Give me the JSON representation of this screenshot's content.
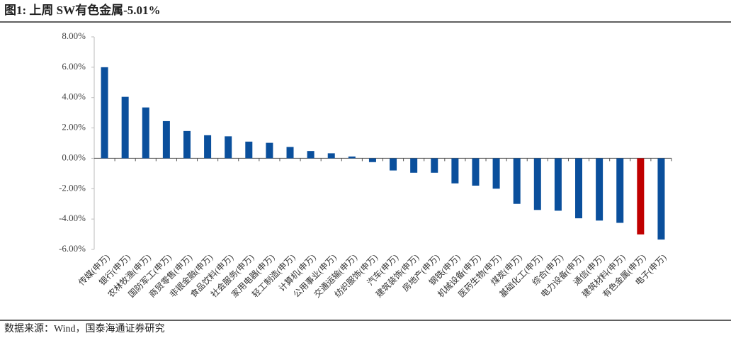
{
  "chart_data": {
    "type": "bar",
    "title": "图1:  上周 SW有色金属-5.01%",
    "source": "数据来源：Wind，国泰海通证券研究",
    "categories": [
      "传媒(申万)",
      "银行(申万)",
      "农林牧渔(申万)",
      "国防军工(申万)",
      "商贸零售(申万)",
      "非银金融(申万)",
      "食品饮料(申万)",
      "社会服务(申万)",
      "家用电器(申万)",
      "轻工制造(申万)",
      "计算机(申万)",
      "公用事业(申万)",
      "交通运输(申万)",
      "纺织服饰(申万)",
      "汽车(申万)",
      "建筑装饰(申万)",
      "房地产(申万)",
      "钢铁(申万)",
      "机械设备(申万)",
      "医药生物(申万)",
      "煤炭(申万)",
      "基础化工(申万)",
      "综合(申万)",
      "电力设备(申万)",
      "通信(申万)",
      "建筑材料(申万)",
      "有色金属(申万)",
      "电子(申万)"
    ],
    "values": [
      6.0,
      4.05,
      3.35,
      2.45,
      1.8,
      1.52,
      1.45,
      1.1,
      1.02,
      0.75,
      0.48,
      0.33,
      0.12,
      -0.25,
      -0.8,
      -0.95,
      -0.95,
      -1.65,
      -1.8,
      -2.0,
      -3.0,
      -3.4,
      -3.45,
      -3.95,
      -4.1,
      -4.25,
      -5.01,
      -5.35
    ],
    "colors": [
      "#0a4f9c",
      "#0a4f9c",
      "#0a4f9c",
      "#0a4f9c",
      "#0a4f9c",
      "#0a4f9c",
      "#0a4f9c",
      "#0a4f9c",
      "#0a4f9c",
      "#0a4f9c",
      "#0a4f9c",
      "#0a4f9c",
      "#0a4f9c",
      "#0a4f9c",
      "#0a4f9c",
      "#0a4f9c",
      "#0a4f9c",
      "#0a4f9c",
      "#0a4f9c",
      "#0a4f9c",
      "#0a4f9c",
      "#0a4f9c",
      "#0a4f9c",
      "#0a4f9c",
      "#0a4f9c",
      "#0a4f9c",
      "#c00000",
      "#0a4f9c"
    ],
    "ylim": [
      -6,
      8
    ],
    "yticks": [
      {
        "value": -6,
        "label": "-6.00%"
      },
      {
        "value": -4,
        "label": "-4.00%"
      },
      {
        "value": -2,
        "label": "-2.00%"
      },
      {
        "value": 0,
        "label": "0.00%"
      },
      {
        "value": 2,
        "label": "2.00%"
      },
      {
        "value": 4,
        "label": "4.00%"
      },
      {
        "value": 6,
        "label": "6.00%"
      },
      {
        "value": 8,
        "label": "8.00%"
      }
    ]
  }
}
